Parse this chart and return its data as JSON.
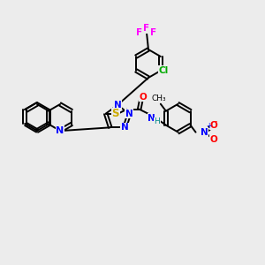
{
  "bg_color": "#ececec",
  "bond_color": "#000000",
  "bond_lw": 1.4,
  "atom_colors": {
    "N": "#0000ff",
    "O": "#ff0000",
    "S": "#ccaa00",
    "F": "#ff00ff",
    "Cl": "#00aa00",
    "H": "#008888",
    "C+": "#ff6600"
  },
  "font_size": 7.5
}
